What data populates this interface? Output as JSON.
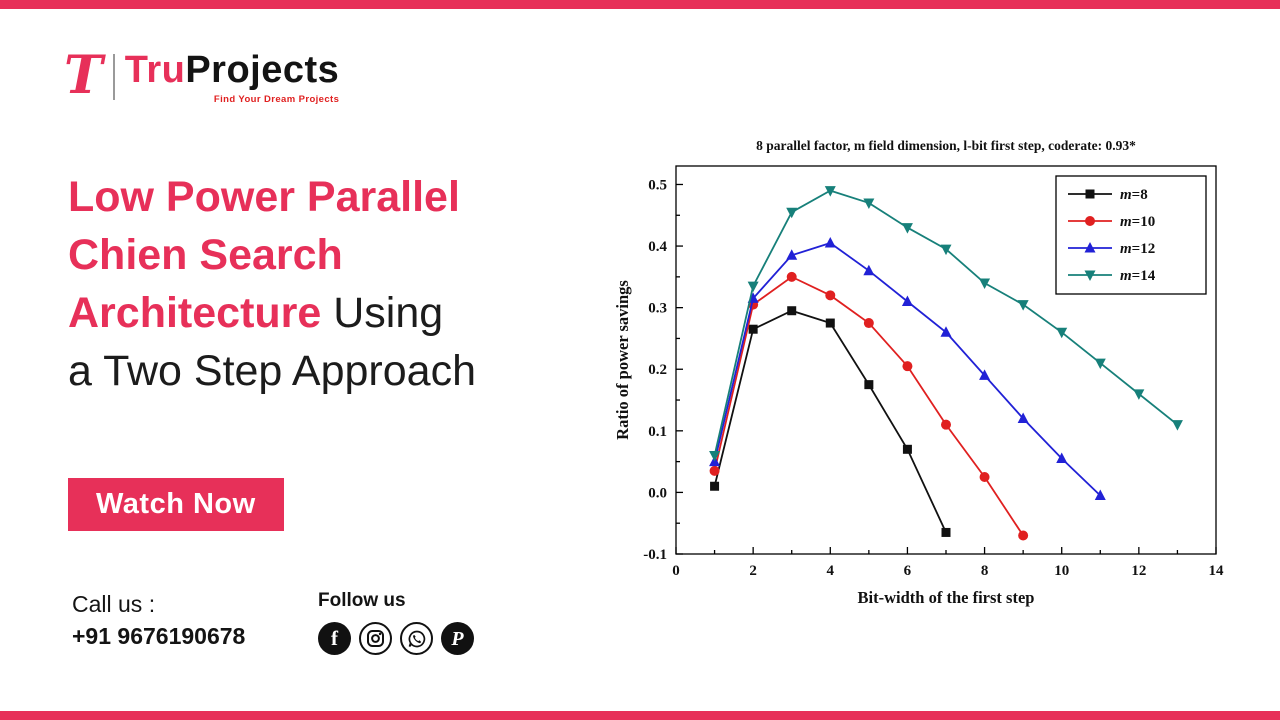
{
  "theme": {
    "accent": "#e73059",
    "text_dark": "#1c1c1c"
  },
  "brand": {
    "logo_t": "T",
    "name_first": "Tru",
    "name_second": "Projects",
    "tagline": "Find Your Dream Projects"
  },
  "headline": {
    "line1": "Low Power Parallel",
    "line2": "Chien Search",
    "line3_accent": "Architecture",
    "line3_rest": " Using",
    "line4": "a Two Step Approach"
  },
  "cta": {
    "label": "Watch Now"
  },
  "contact": {
    "call_label": "Call us :",
    "phone": "+91 9676190678"
  },
  "social": {
    "label": "Follow us",
    "icons": [
      "facebook-icon",
      "instagram-icon",
      "whatsapp-icon",
      "pinterest-icon"
    ],
    "facebook_glyph": "f",
    "pinterest_glyph": "P"
  },
  "chart_data": {
    "type": "line",
    "title": "8 parallel factor, m field dimension, l-bit first step, coderate: 0.93*",
    "xlabel": "Bit-width of the first step",
    "ylabel": "Ratio of power savings",
    "xlim": [
      0,
      14
    ],
    "ylim": [
      -0.1,
      0.53
    ],
    "xticks": [
      0,
      2,
      4,
      6,
      8,
      10,
      12,
      14
    ],
    "yticks": [
      -0.1,
      0.0,
      0.1,
      0.2,
      0.3,
      0.4,
      0.5
    ],
    "xtick_minor_step": 1,
    "ytick_minor_step": 0.05,
    "grid": false,
    "legend_position": "top-right",
    "series": [
      {
        "name": "m=8",
        "marker": "square",
        "color": "#111111",
        "x": [
          1,
          2,
          3,
          4,
          5,
          6,
          7
        ],
        "y": [
          0.01,
          0.265,
          0.295,
          0.275,
          0.175,
          0.07,
          -0.065
        ]
      },
      {
        "name": "m=10",
        "marker": "circle",
        "color": "#e02020",
        "x": [
          1,
          2,
          3,
          4,
          5,
          6,
          7,
          8,
          9
        ],
        "y": [
          0.035,
          0.305,
          0.35,
          0.32,
          0.275,
          0.205,
          0.11,
          0.025,
          -0.07
        ]
      },
      {
        "name": "m=12",
        "marker": "triangle-up",
        "color": "#2121d6",
        "x": [
          1,
          2,
          3,
          4,
          5,
          6,
          7,
          8,
          9,
          10,
          11
        ],
        "y": [
          0.05,
          0.315,
          0.385,
          0.405,
          0.36,
          0.31,
          0.26,
          0.19,
          0.12,
          0.055,
          -0.005
        ]
      },
      {
        "name": "m=14",
        "marker": "triangle-down",
        "color": "#17807a",
        "x": [
          1,
          2,
          3,
          4,
          5,
          6,
          7,
          8,
          9,
          10,
          11,
          12,
          13
        ],
        "y": [
          0.06,
          0.335,
          0.455,
          0.49,
          0.47,
          0.43,
          0.395,
          0.34,
          0.305,
          0.26,
          0.21,
          0.16,
          0.11
        ]
      }
    ]
  }
}
